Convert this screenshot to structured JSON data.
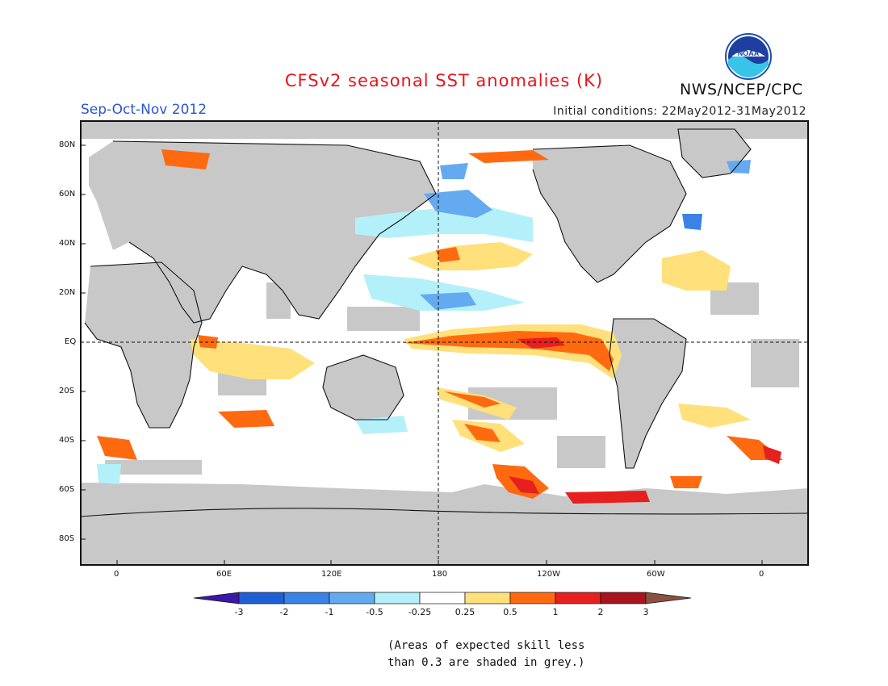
{
  "title": "CFSv2 seasonal SST anomalies (K)",
  "agency": "NWS/NCEP/CPC",
  "logo": {
    "text": "NOAA"
  },
  "season": "Sep-Oct-Nov 2012",
  "initial_conditions": "Initial conditions: 22May2012-31May2012",
  "map": {
    "lat_labels": [
      "80N",
      "60N",
      "40N",
      "20N",
      "EQ",
      "20S",
      "40S",
      "60S",
      "80S"
    ],
    "lon_labels": [
      "0",
      "60E",
      "120E",
      "180",
      "120W",
      "60W",
      "0"
    ],
    "land_color": "#c8c8c8",
    "ocean_color": "#ffffff"
  },
  "colorbar": {
    "tick_labels": [
      "-3",
      "-2",
      "-1",
      "-0.5",
      "-0.25",
      "0.25",
      "0.5",
      "1",
      "2",
      "3"
    ],
    "colors": [
      "#3a18a8",
      "#1f5fd6",
      "#3a82e6",
      "#64aaf0",
      "#b4f0fa",
      "#ffffff",
      "#ffe07a",
      "#ff6a10",
      "#e6201e",
      "#a8141e",
      "#8b5040"
    ]
  },
  "notes": [
    "(Areas of expected skill less",
    "than 0.3 are shaded in grey.)"
  ]
}
